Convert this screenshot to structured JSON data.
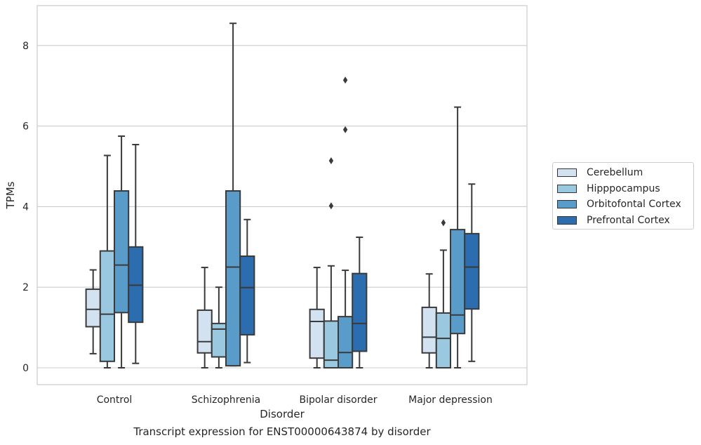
{
  "chart_data": {
    "type": "box",
    "title": "",
    "caption": "Transcript expression for ENST00000643874 by disorder",
    "xlabel": "Disorder",
    "ylabel": "TPMs",
    "ylim": [
      -0.4,
      8.95
    ],
    "yticks": [
      0,
      2,
      4,
      6,
      8
    ],
    "grid": "horizontal",
    "legend_position": "right",
    "categories": [
      "Control",
      "Schizophrenia",
      "Bipolar disorder",
      "Major depression"
    ],
    "series": [
      {
        "name": "Cerebellum",
        "color": "#d2e2f1",
        "boxes": [
          {
            "whisker_low": 0.35,
            "q1": 1.02,
            "median": 1.45,
            "q3": 1.95,
            "whisker_high": 2.43,
            "outliers": []
          },
          {
            "whisker_low": 0.0,
            "q1": 0.37,
            "median": 0.65,
            "q3": 1.43,
            "whisker_high": 2.49,
            "outliers": []
          },
          {
            "whisker_low": 0.0,
            "q1": 0.24,
            "median": 1.15,
            "q3": 1.45,
            "whisker_high": 2.49,
            "outliers": []
          },
          {
            "whisker_low": 0.0,
            "q1": 0.37,
            "median": 0.76,
            "q3": 1.5,
            "whisker_high": 2.33,
            "outliers": []
          }
        ]
      },
      {
        "name": "Hipppocampus",
        "color": "#9ac8e0",
        "boxes": [
          {
            "whisker_low": 0.0,
            "q1": 0.16,
            "median": 1.33,
            "q3": 2.9,
            "whisker_high": 5.27,
            "outliers": []
          },
          {
            "whisker_low": 0.0,
            "q1": 0.27,
            "median": 0.96,
            "q3": 1.1,
            "whisker_high": 2.0,
            "outliers": []
          },
          {
            "whisker_low": 0.0,
            "q1": 0.0,
            "median": 0.19,
            "q3": 1.16,
            "whisker_high": 2.53,
            "outliers": [
              4.02,
              5.14
            ]
          },
          {
            "whisker_low": 0.0,
            "q1": 0.0,
            "median": 0.73,
            "q3": 1.36,
            "whisker_high": 2.92,
            "outliers": [
              3.6
            ]
          }
        ]
      },
      {
        "name": "Orbitofontal Cortex",
        "color": "#5a9cc9",
        "boxes": [
          {
            "whisker_low": 0.0,
            "q1": 1.37,
            "median": 2.55,
            "q3": 4.39,
            "whisker_high": 5.75,
            "outliers": []
          },
          {
            "whisker_low": 0.05,
            "q1": 0.05,
            "median": 2.5,
            "q3": 4.39,
            "whisker_high": 8.55,
            "outliers": []
          },
          {
            "whisker_low": 0.0,
            "q1": 0.0,
            "median": 0.38,
            "q3": 1.27,
            "whisker_high": 2.42,
            "outliers": [
              5.91,
              7.14
            ]
          },
          {
            "whisker_low": 0.0,
            "q1": 0.85,
            "median": 1.31,
            "q3": 3.43,
            "whisker_high": 6.47,
            "outliers": []
          }
        ]
      },
      {
        "name": "Prefrontal Cortex",
        "color": "#2b6daf",
        "boxes": [
          {
            "whisker_low": 0.11,
            "q1": 1.13,
            "median": 2.05,
            "q3": 3.0,
            "whisker_high": 5.54,
            "outliers": []
          },
          {
            "whisker_low": 0.13,
            "q1": 0.82,
            "median": 1.99,
            "q3": 2.77,
            "whisker_high": 3.68,
            "outliers": []
          },
          {
            "whisker_low": 0.0,
            "q1": 0.41,
            "median": 1.1,
            "q3": 2.34,
            "whisker_high": 3.24,
            "outliers": []
          },
          {
            "whisker_low": 0.16,
            "q1": 1.46,
            "median": 2.5,
            "q3": 3.33,
            "whisker_high": 4.56,
            "outliers": []
          }
        ]
      }
    ]
  }
}
